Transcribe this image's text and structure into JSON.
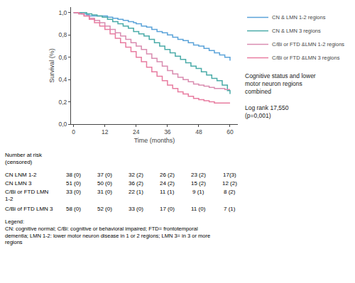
{
  "chart_data": {
    "type": "step",
    "xlabel": "Time (months)",
    "ylabel": "Survival (%)",
    "xlim": [
      -1,
      63
    ],
    "ylim": [
      0.0,
      1.05
    ],
    "xticks": [
      0,
      12,
      24,
      36,
      48,
      60
    ],
    "yticks": [
      {
        "value": 0.0,
        "label": "0,0"
      },
      {
        "value": 0.2,
        "label": "0,2"
      },
      {
        "value": 0.4,
        "label": "0,4"
      },
      {
        "value": 0.6,
        "label": "0,6"
      },
      {
        "value": 0.8,
        "label": "0,8"
      },
      {
        "value": 1.0,
        "label": "1,0"
      }
    ],
    "grid": false,
    "legend": "upper right",
    "series": [
      {
        "name": "CN & LMN 1-2 regions",
        "color": "#5BA3D9",
        "x": [
          0,
          3,
          5,
          6,
          8,
          10,
          13,
          15,
          17,
          19,
          21,
          23,
          24,
          26,
          28,
          30,
          32,
          34,
          36,
          38,
          40,
          42,
          44,
          46,
          48,
          50,
          52,
          54,
          56,
          58,
          60
        ],
        "values": [
          1.0,
          0.99,
          0.98,
          0.97,
          0.97,
          0.97,
          0.96,
          0.95,
          0.94,
          0.93,
          0.92,
          0.91,
          0.9,
          0.88,
          0.87,
          0.85,
          0.83,
          0.82,
          0.8,
          0.78,
          0.76,
          0.75,
          0.73,
          0.71,
          0.7,
          0.68,
          0.66,
          0.64,
          0.62,
          0.6,
          0.57
        ]
      },
      {
        "name": "CN & LMN 3 regions",
        "color": "#4AABA8",
        "x": [
          0,
          3,
          5,
          7,
          9,
          11,
          13,
          15,
          17,
          19,
          21,
          23,
          25,
          27,
          29,
          31,
          33,
          35,
          37,
          39,
          41,
          43,
          45,
          47,
          49,
          51,
          53,
          55,
          57,
          59,
          60
        ],
        "values": [
          1.0,
          1.0,
          0.99,
          0.98,
          0.97,
          0.96,
          0.94,
          0.92,
          0.9,
          0.88,
          0.86,
          0.83,
          0.81,
          0.79,
          0.76,
          0.73,
          0.7,
          0.67,
          0.64,
          0.61,
          0.58,
          0.55,
          0.52,
          0.5,
          0.47,
          0.44,
          0.41,
          0.39,
          0.35,
          0.3,
          0.27
        ]
      },
      {
        "name": "C/Bi or FTD &LMN 1-2 regions",
        "color": "#D98CB0",
        "x": [
          0,
          2,
          4,
          6,
          8,
          10,
          12,
          14,
          16,
          18,
          20,
          22,
          24,
          26,
          28,
          30,
          32,
          34,
          36,
          38,
          40,
          42,
          44,
          46,
          48,
          50,
          52,
          54,
          56,
          58,
          60
        ],
        "values": [
          1.0,
          0.99,
          0.97,
          0.95,
          0.93,
          0.91,
          0.88,
          0.85,
          0.82,
          0.79,
          0.76,
          0.73,
          0.7,
          0.67,
          0.63,
          0.59,
          0.56,
          0.52,
          0.48,
          0.45,
          0.42,
          0.4,
          0.38,
          0.36,
          0.35,
          0.34,
          0.33,
          0.32,
          0.32,
          0.31,
          0.31
        ]
      },
      {
        "name": "C/Bi or FTD &LMN 3 regions",
        "color": "#E87CA0",
        "x": [
          0,
          2,
          4,
          6,
          8,
          10,
          12,
          14,
          16,
          18,
          20,
          22,
          24,
          26,
          28,
          30,
          32,
          34,
          36,
          38,
          40,
          42,
          44,
          46,
          48,
          50,
          52,
          54,
          56,
          58,
          60
        ],
        "values": [
          1.0,
          0.99,
          0.97,
          0.94,
          0.91,
          0.88,
          0.85,
          0.81,
          0.77,
          0.73,
          0.69,
          0.65,
          0.6,
          0.56,
          0.51,
          0.47,
          0.43,
          0.39,
          0.35,
          0.32,
          0.29,
          0.27,
          0.25,
          0.23,
          0.22,
          0.21,
          0.2,
          0.19,
          0.19,
          0.19,
          0.19
        ]
      }
    ],
    "annotations": [
      "Cognitive status and lower\nmotor neuron regions\ncombined",
      "Log rank 17,550\n(p=0,001)"
    ],
    "risk_table": {
      "header": "Number at risk\n(censored)",
      "rows": [
        {
          "label": "CN LNM 1-2",
          "values": [
            "38 (0)",
            "37 (0)",
            "32 (2)",
            "26 (2)",
            "23 (2)",
            "17(3)"
          ]
        },
        {
          "label": "CN LMN 3",
          "values": [
            "51 (0)",
            "50 (0)",
            "36 (2)",
            "24 (2)",
            "15 (2)",
            "12 (2)"
          ]
        },
        {
          "label": "C/Bi or FTD LMN\n1-2",
          "values": [
            "33 (0)",
            "31 (0)",
            "22 (1)",
            "11 (1)",
            "9 (1)",
            "8 (2)"
          ]
        },
        {
          "label": "C/Bi of FTD LMN 3",
          "values": [
            "58 (0)",
            "52 (0)",
            "33 (0)",
            "17 (0)",
            "11 (0)",
            "7 (1)"
          ]
        }
      ]
    },
    "footnote": "Legend:\nCN: cognitive normal; C/Bi: cognitive or behavioral impaired; FTD= frontotemporal\ndementia; LMN 1-2: lower motor neuron disease in 1 or 2 regions; LMN 3= in 3 or more\nregions"
  }
}
